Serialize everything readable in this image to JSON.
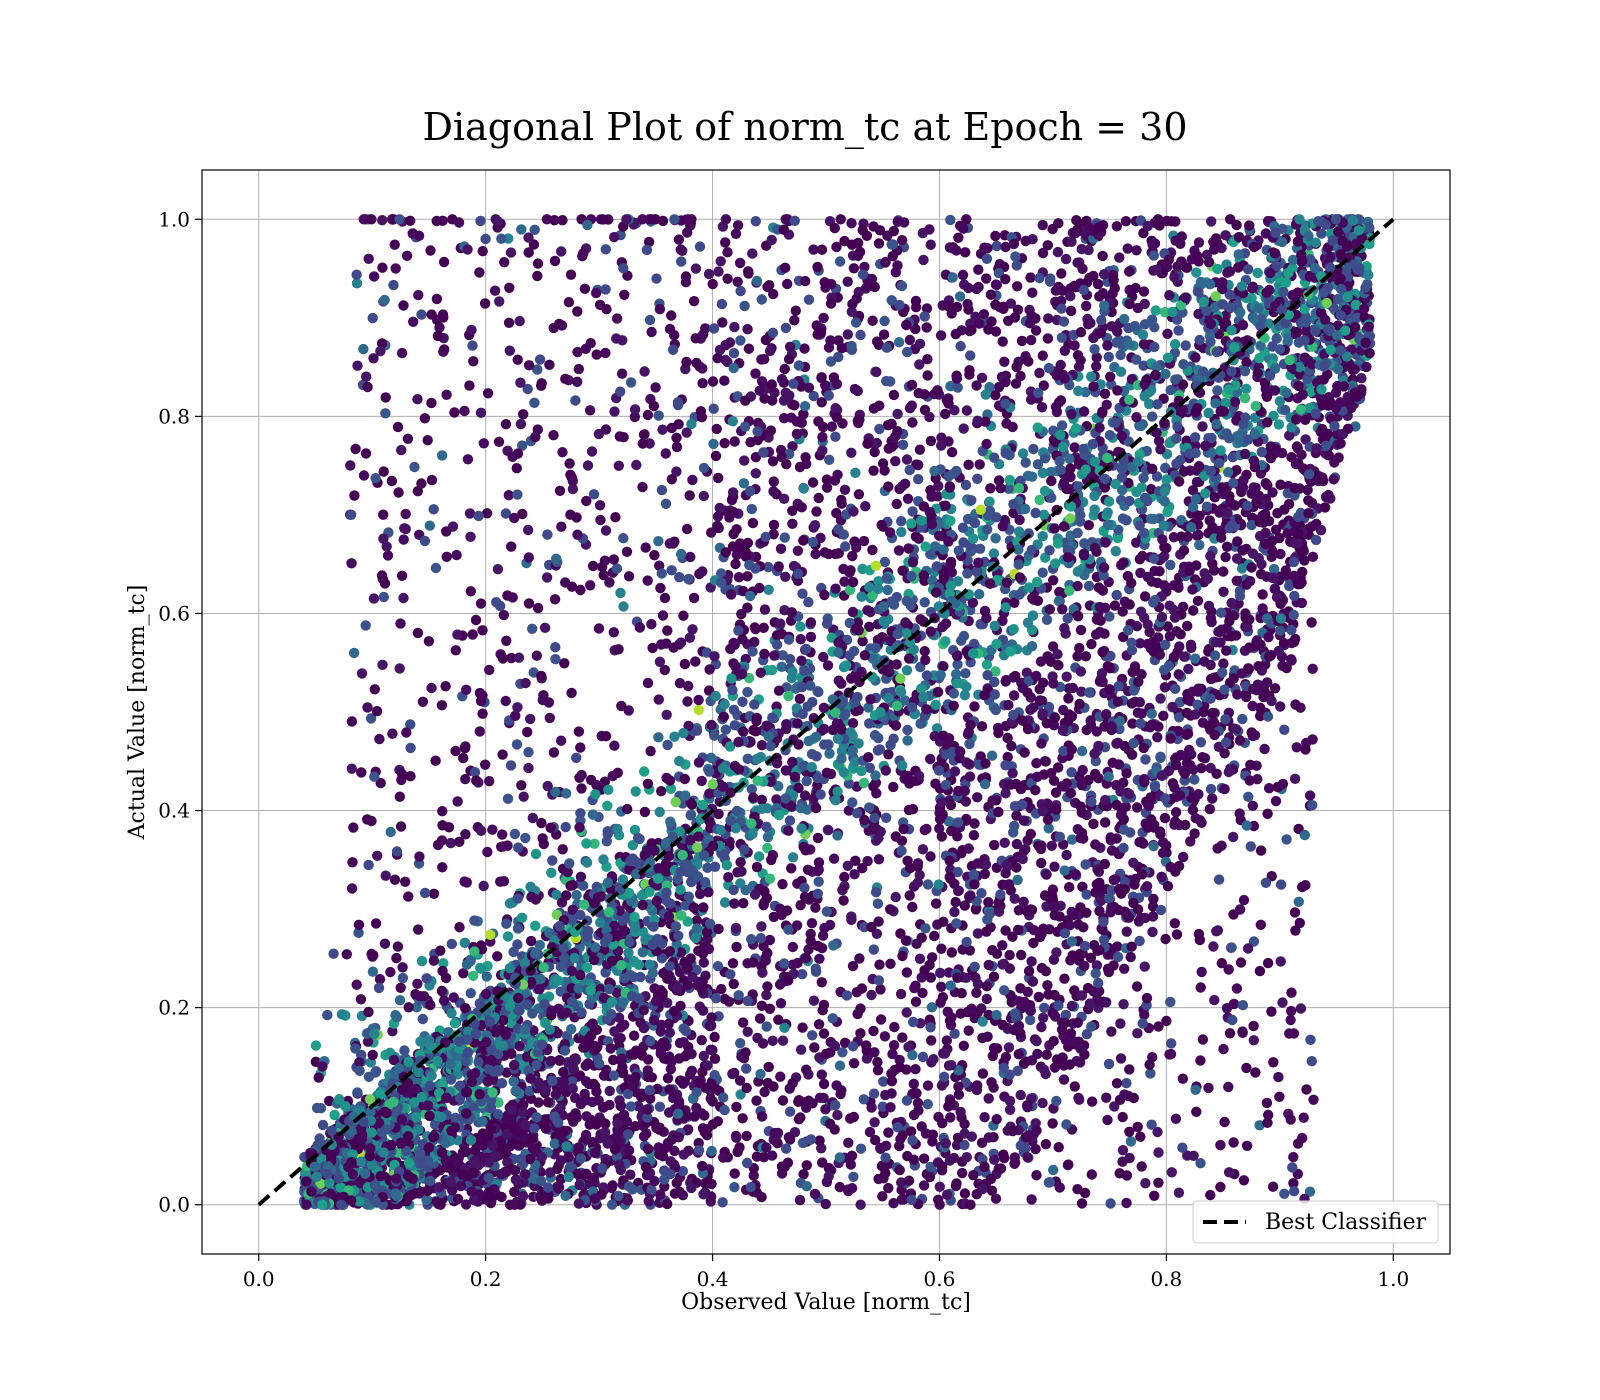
{
  "chart_data": {
    "type": "scatter",
    "title": "Diagonal Plot of norm_tc at Epoch = 30",
    "xlabel": "Observed Value [norm_tc]",
    "ylabel": "Actual Value [norm_tc]",
    "xlim": [
      -0.05,
      1.05
    ],
    "ylim": [
      -0.05,
      1.05
    ],
    "xticks": [
      0.0,
      0.2,
      0.4,
      0.6,
      0.8,
      1.0
    ],
    "yticks": [
      0.0,
      0.2,
      0.4,
      0.6,
      0.8,
      1.0
    ],
    "xtick_labels": [
      "0.0",
      "0.2",
      "0.4",
      "0.6",
      "0.8",
      "1.0"
    ],
    "ytick_labels": [
      "0.0",
      "0.2",
      "0.4",
      "0.6",
      "0.8",
      "1.0"
    ],
    "grid": true,
    "colormap": "viridis",
    "point_colors": [
      "#440154",
      "#46085c",
      "#471365",
      "#3e4a89",
      "#3b528b",
      "#31688e",
      "#26828e",
      "#21918c",
      "#1f9e89",
      "#35b779",
      "#6ece58",
      "#b5de2b",
      "#fde725"
    ],
    "reference_line": {
      "name": "Best Classifier",
      "x": [
        0.0,
        1.0
      ],
      "y": [
        0.0,
        1.0
      ],
      "style": "dashed",
      "color": "#000000"
    },
    "legend": {
      "placement": "lower-right",
      "entries": [
        "Best Classifier"
      ]
    },
    "approx_point_count": 45000,
    "point_distribution": {
      "x_range": [
        0.04,
        0.98
      ],
      "y_range": [
        0.0,
        1.0
      ],
      "dense_band_low": "x from 0.04 to 0.65 for y near 0",
      "dense_band_high": "x from 0.40 to 0.97 for y near 1",
      "description_regions": [
        {
          "x": [
            0.04,
            0.4
          ],
          "y": [
            0.0,
            0.4
          ]
        },
        {
          "x": [
            0.4,
            0.7
          ],
          "y": [
            0.0,
            1.0
          ]
        },
        {
          "x": [
            0.7,
            0.97
          ],
          "y": [
            0.6,
            1.0
          ]
        }
      ]
    }
  }
}
